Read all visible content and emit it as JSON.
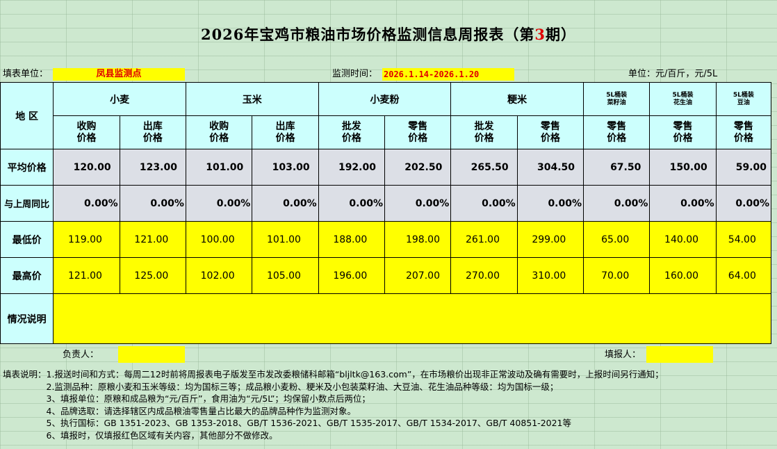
{
  "title_prefix": "2026年宝鸡市粮油市场价格监测信息周报表（第",
  "title_issue": "3",
  "title_suffix": "期）",
  "filler_label": "填表单位：",
  "filler_value": "凤县监测点",
  "period_label": "监测时间：",
  "period_value": "2026.1.14-2026.1.20",
  "unit_label": "单位：元/百斤，元/5L",
  "region_header": "地  区",
  "groups": [
    "小麦",
    "玉米",
    "小麦粉",
    "粳米",
    "5L桶装\n菜籽油",
    "5L桶装\n花生油",
    "5L桶装\n豆油"
  ],
  "subheaders": [
    "收购\n价格",
    "出库\n价格",
    "收购\n价格",
    "出库\n价格",
    "批发\n价格",
    "零售\n价格",
    "批发\n价格",
    "零售\n价格",
    "零售\n价格",
    "零售\n价格",
    "零售\n价格"
  ],
  "rows": {
    "avg_label": "平均价格",
    "avg": [
      "120.00",
      "123.00",
      "101.00",
      "103.00",
      "192.00",
      "202.50",
      "265.50",
      "304.50",
      "67.50",
      "150.00",
      "59.00"
    ],
    "wow_label": "与上周同比",
    "wow": [
      "0.00%",
      "0.00%",
      "0.00%",
      "0.00%",
      "0.00%",
      "0.00%",
      "0.00%",
      "0.00%",
      "0.00%",
      "0.00%",
      "0.00%"
    ],
    "min_label": "最低价",
    "min": [
      "119.00",
      "121.00",
      "100.00",
      "101.00",
      "188.00",
      "198.00",
      "261.00",
      "299.00",
      "65.00",
      "140.00",
      "54.00"
    ],
    "max_label": "最高价",
    "max": [
      "121.00",
      "125.00",
      "102.00",
      "105.00",
      "196.00",
      "207.00",
      "270.00",
      "310.00",
      "70.00",
      "160.00",
      "64.00"
    ],
    "remark_label": "情况说明"
  },
  "responsible_label": "负责人：",
  "reporter_label": "填报人：",
  "notes": [
    "填表说明：1.报送时间和方式：每周二12时前将周报表电子版发至市发改委粮储科邮箱“bljltk@163.com”，在市场粮价出现非正常波动及确有需要时，上报时间另行通知；",
    "　　　　　2.监测品种：原粮小麦和玉米等级：均为国标三等；成品粮小麦粉、粳米及小包装菜籽油、大豆油、花生油品种等级：均为国标一级；",
    "　　　　　3、填报单位：原粮和成品粮为“元/百斤”，食用油为“元/5L”；均保留小数点后两位；",
    "　　　　　4、品牌选取：请选择辖区内成品粮油零售量占比最大的品牌品种作为监测对象。",
    "　　　　　5、执行国标：GB 1351-2023、GB 1353-2018、GB/T 1536-2021、GB/T 1535-2017、GB/T 1534-2017、GB/T 40851-2021等",
    "　　　　　6、填报时，仅填报红色区域有关内容，其他部分不做修改。"
  ],
  "colors": {
    "background": "#cde8cf",
    "header": "#ccfffd",
    "highlight": "#ffff00",
    "accent_red": "#e00000",
    "stat_row": "#dcdfe6"
  }
}
